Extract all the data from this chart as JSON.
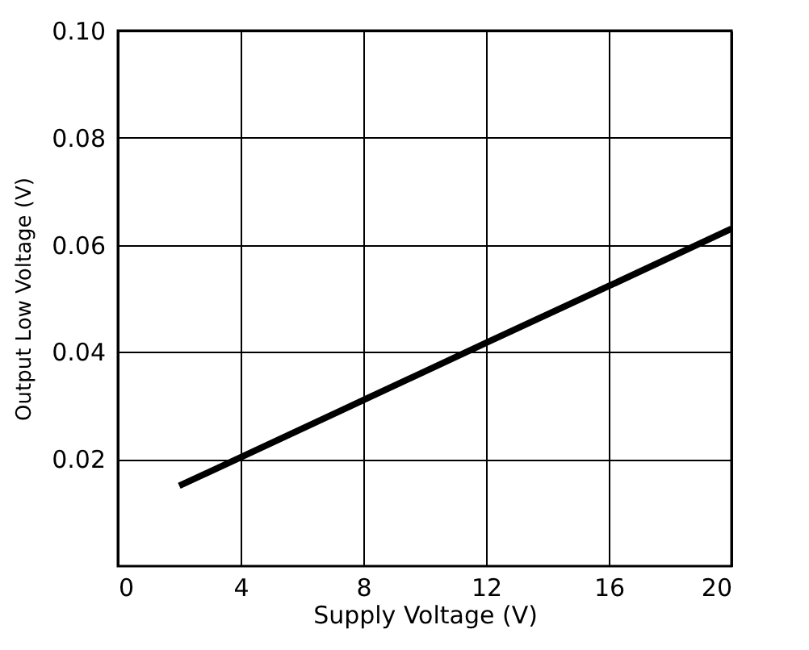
{
  "chart_data": {
    "type": "line",
    "xlabel": "Supply Voltage (V)",
    "ylabel": "Output Low Voltage (V)",
    "x": [
      2,
      4,
      8,
      12,
      16,
      20
    ],
    "series": [
      {
        "color": "#000000",
        "values": [
          0.015,
          0.0203,
          0.031,
          0.0417,
          0.0523,
          0.063
        ]
      }
    ],
    "xlim": [
      0,
      20
    ],
    "xticks": [
      0,
      4,
      8,
      12,
      16,
      20
    ],
    "ylim": [
      0,
      0.1
    ],
    "yticks": [
      0.02,
      0.04,
      0.06,
      0.08,
      {
        "value": 0.1,
        "label": "0.10"
      }
    ],
    "grid": true,
    "marker": "none",
    "line_style": "solid"
  }
}
